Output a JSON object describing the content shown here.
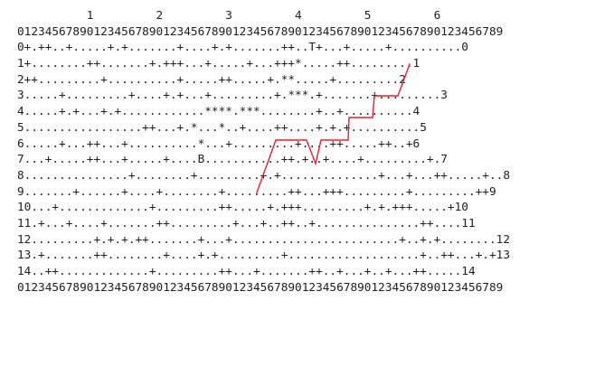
{
  "grid": {
    "lines": [
      "          1         2         3         4         5         6",
      "0123456789012345678901234567890123456789012345678901234567890123456789",
      "0+.++..+.....+.+.......+....+.+.......++..T+...+.....+..........0",
      "1+........++.......+.+++...+.....+...+++*.....++.........1",
      "2++.........+..........+.....++.....+.**.....+.........2",
      "3.....+.........+....+.+...+.........+.***.+.......+.........3",
      "4.....+.+...+.+............****.***........+..+..........4",
      "5.................++...+.*...*..+....++....+.+.+..........5",
      "6.....+...++...+..........*...+.........+....++.....++..+6",
      "7...+.....++...+.....+....B...........++.+..+....+.........+.7",
      "8...............+........+.........+.+..............+...+...++.....+..8",
      "9.......+......+....+........+.........++...+++.........+.........++9",
      "10...+.............+.........++.....+.+++.........+.+.+++.....+10",
      "11.+...+....+.......++.........+...+..++..+...............++....11",
      "12.........+.+.+.++.......+...+........................+..+.+........12",
      "13.+.......++........+....+.+.........+...................+..++...+.+13",
      "14..++.............+.........++...+.......++..+...+..+...++.....14",
      "0123456789012345678901234567890123456789012345678901234567890123456789"
    ]
  },
  "route": {
    "color": "#f2192e",
    "start_marker": "B",
    "end_marker": "T"
  }
}
